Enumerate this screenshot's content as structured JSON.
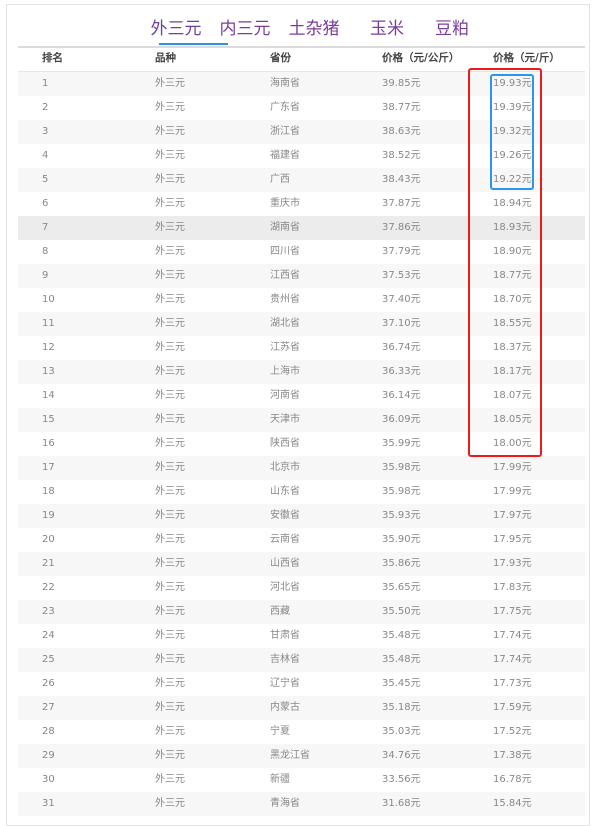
{
  "tabs": [
    {
      "label": "外三元",
      "active": true
    },
    {
      "label": "内三元"
    },
    {
      "label": "土杂猪"
    },
    {
      "label": "玉米"
    },
    {
      "label": "豆粕"
    }
  ],
  "table": {
    "headers": [
      "排名",
      "品种",
      "省份",
      "价格（元/公斤）",
      "价格（元/斤）"
    ],
    "rows": [
      [
        "1",
        "外三元",
        "海南省",
        "39.85元",
        "19.93元"
      ],
      [
        "2",
        "外三元",
        "广东省",
        "38.77元",
        "19.39元"
      ],
      [
        "3",
        "外三元",
        "浙江省",
        "38.63元",
        "19.32元"
      ],
      [
        "4",
        "外三元",
        "福建省",
        "38.52元",
        "19.26元"
      ],
      [
        "5",
        "外三元",
        "广西",
        "38.43元",
        "19.22元"
      ],
      [
        "6",
        "外三元",
        "重庆市",
        "37.87元",
        "18.94元"
      ],
      [
        "7",
        "外三元",
        "湖南省",
        "37.86元",
        "18.93元"
      ],
      [
        "8",
        "外三元",
        "四川省",
        "37.79元",
        "18.90元"
      ],
      [
        "9",
        "外三元",
        "江西省",
        "37.53元",
        "18.77元"
      ],
      [
        "10",
        "外三元",
        "贵州省",
        "37.40元",
        "18.70元"
      ],
      [
        "11",
        "外三元",
        "湖北省",
        "37.10元",
        "18.55元"
      ],
      [
        "12",
        "外三元",
        "江苏省",
        "36.74元",
        "18.37元"
      ],
      [
        "13",
        "外三元",
        "上海市",
        "36.33元",
        "18.17元"
      ],
      [
        "14",
        "外三元",
        "河南省",
        "36.14元",
        "18.07元"
      ],
      [
        "15",
        "外三元",
        "天津市",
        "36.09元",
        "18.05元"
      ],
      [
        "16",
        "外三元",
        "陕西省",
        "35.99元",
        "18.00元"
      ],
      [
        "17",
        "外三元",
        "北京市",
        "35.98元",
        "17.99元"
      ],
      [
        "18",
        "外三元",
        "山东省",
        "35.98元",
        "17.99元"
      ],
      [
        "19",
        "外三元",
        "安徽省",
        "35.93元",
        "17.97元"
      ],
      [
        "20",
        "外三元",
        "云南省",
        "35.90元",
        "17.95元"
      ],
      [
        "21",
        "外三元",
        "山西省",
        "35.86元",
        "17.93元"
      ],
      [
        "22",
        "外三元",
        "河北省",
        "35.65元",
        "17.83元"
      ],
      [
        "23",
        "外三元",
        "西藏",
        "35.50元",
        "17.75元"
      ],
      [
        "24",
        "外三元",
        "甘肃省",
        "35.48元",
        "17.74元"
      ],
      [
        "25",
        "外三元",
        "吉林省",
        "35.48元",
        "17.74元"
      ],
      [
        "26",
        "外三元",
        "辽宁省",
        "35.45元",
        "17.73元"
      ],
      [
        "27",
        "外三元",
        "内蒙古",
        "35.18元",
        "17.59元"
      ],
      [
        "28",
        "外三元",
        "宁夏",
        "35.03元",
        "17.52元"
      ],
      [
        "29",
        "外三元",
        "黑龙江省",
        "34.76元",
        "17.38元"
      ],
      [
        "30",
        "外三元",
        "新疆",
        "33.56元",
        "16.78元"
      ],
      [
        "31",
        "外三元",
        "青海省",
        "31.68元",
        "15.84元"
      ]
    ]
  },
  "colors": {
    "tab_text": "#7a3d9c",
    "tab_underline": "#2f8fe6",
    "red_highlight": "#f01818",
    "blue_highlight": "#2d95ef"
  }
}
